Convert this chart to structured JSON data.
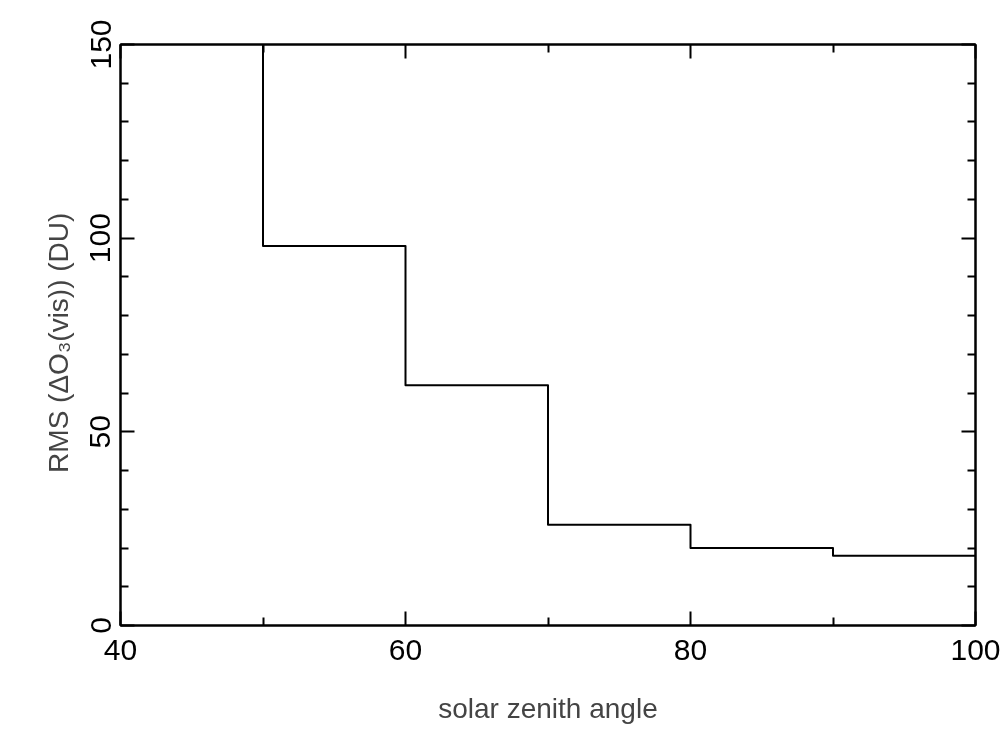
{
  "chart_data": {
    "type": "line",
    "xlabel": "solar zenith angle",
    "ylabel": "RMS (ΔO₃(vis))   (DU)",
    "x": [
      50,
      50,
      60,
      60,
      70,
      70,
      80,
      80,
      90,
      90,
      100
    ],
    "series": [
      {
        "color": "#000000",
        "values": [
          150,
          98,
          98,
          62,
          62,
          26,
          26,
          20,
          20,
          18,
          18
        ]
      }
    ],
    "xlim": [
      40,
      100
    ],
    "ylim": [
      0,
      150
    ],
    "xticks": [
      40,
      {
        "value": 50,
        "label": null
      },
      60,
      {
        "value": 70,
        "label": null
      },
      80,
      {
        "value": 90,
        "label": null
      },
      100
    ],
    "yticks": [
      0,
      {
        "value": 10,
        "label": null
      },
      {
        "value": 20,
        "label": null
      },
      {
        "value": 30,
        "label": null
      },
      {
        "value": 40,
        "label": null
      },
      50,
      {
        "value": 60,
        "label": null
      },
      {
        "value": 70,
        "label": null
      },
      {
        "value": 80,
        "label": null
      },
      {
        "value": 90,
        "label": null
      },
      100,
      {
        "value": 110,
        "label": null
      },
      {
        "value": 120,
        "label": null
      },
      {
        "value": 130,
        "label": null
      },
      {
        "value": 140,
        "label": null
      },
      150
    ],
    "grid": false,
    "marker": "none",
    "line_style": "solid"
  }
}
